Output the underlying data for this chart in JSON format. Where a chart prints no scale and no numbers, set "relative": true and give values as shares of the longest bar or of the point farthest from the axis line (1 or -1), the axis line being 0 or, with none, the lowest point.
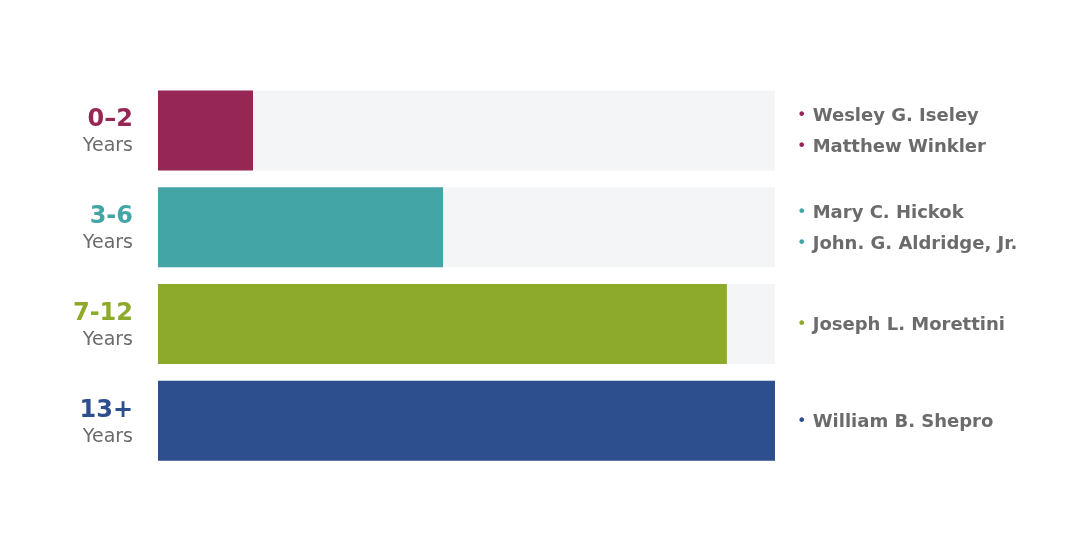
{
  "chart_data": {
    "type": "bar",
    "orientation": "horizontal",
    "relative": true,
    "categories": [
      "0–2\nYears",
      "3-6\nYears",
      "7-12\nYears",
      "13+\nYears"
    ],
    "values": [
      0.154,
      0.462,
      0.922,
      1
    ],
    "colors": [
      "#962653",
      "#43a5a6",
      "#8eaa2b",
      "#2e4f8e"
    ],
    "annotations": [
      "• Wesley G. Iseley\n• Matthew Winkler",
      "• Mary C. Hickok\n• John. G. Aldridge, Jr.",
      "• Joseph L. Morettini",
      "• William B. Shepro"
    ]
  }
}
